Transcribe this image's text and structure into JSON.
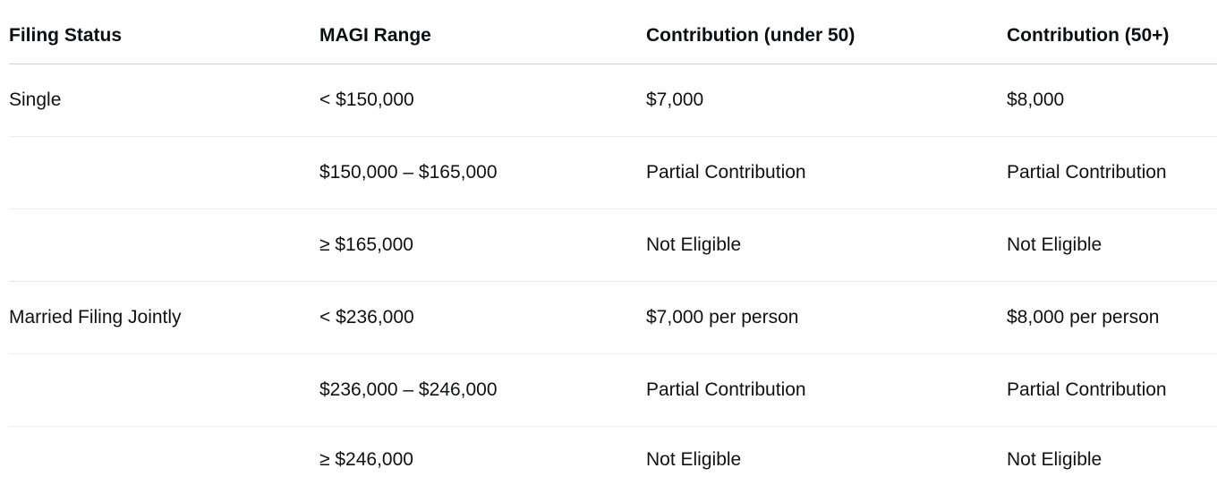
{
  "table": {
    "title_semantic": "ira-contribution-limits-table",
    "columns": [
      "Filing Status",
      "MAGI Range",
      "Contribution (under 50)",
      "Contribution (50+)"
    ],
    "rows": [
      {
        "cells": [
          "Single",
          "< $150,000",
          "$7,000",
          "$8,000"
        ],
        "group_end": false
      },
      {
        "cells": [
          "",
          "$150,000 – $165,000",
          "Partial Contribution",
          "Partial Contribution"
        ],
        "group_end": false
      },
      {
        "cells": [
          "",
          "≥ $165,000",
          "Not Eligible",
          "Not Eligible"
        ],
        "group_end": true
      },
      {
        "cells": [
          "Married Filing Jointly",
          "< $236,000",
          "$7,000 per person",
          "$8,000 per person"
        ],
        "group_end": false
      },
      {
        "cells": [
          "",
          "$236,000 – $246,000",
          "Partial Contribution",
          "Partial Contribution"
        ],
        "group_end": false
      },
      {
        "cells": [
          "",
          "≥ $246,000",
          "Not Eligible",
          "Not Eligible"
        ],
        "group_end": false
      }
    ],
    "column_keys": [
      "filing-status",
      "magi-range",
      "contribution-under-50",
      "contribution-50-plus"
    ]
  },
  "colors": {
    "background": "#ffffff",
    "text": "#101114",
    "header_divider": "#d1d1d6",
    "row_divider": "#ededf0",
    "group_divider": "#e3e3e8"
  }
}
